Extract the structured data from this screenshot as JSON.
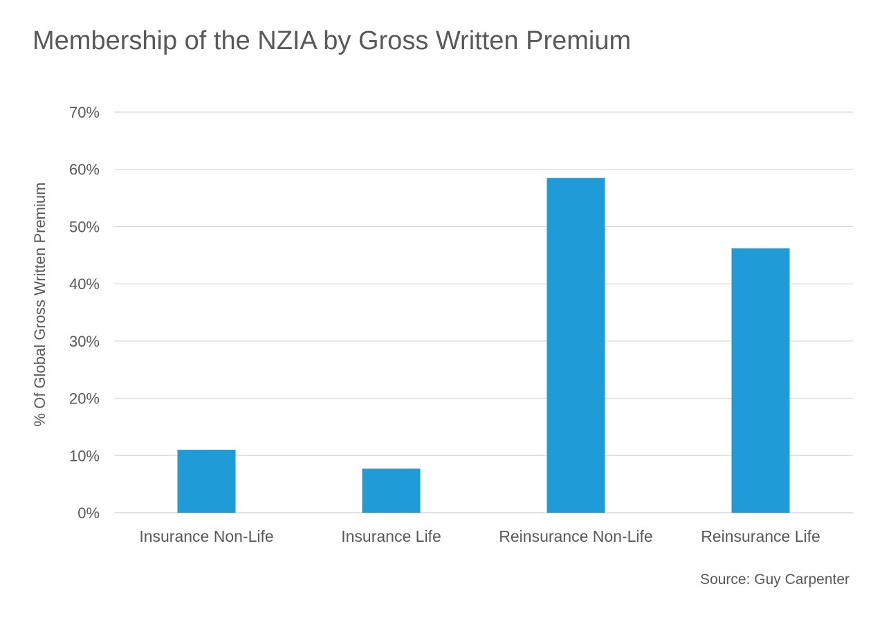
{
  "source": "Source: Guy Carpenter",
  "chart_data": {
    "type": "bar",
    "title": "Membership of the NZIA by Gross Written Premium",
    "xlabel": "",
    "ylabel": "% Of Global Gross Written Premium",
    "categories": [
      "Insurance Non-Life",
      "Insurance Life",
      "Reinsurance Non-Life",
      "Reinsurance Life"
    ],
    "values": [
      0.11,
      0.077,
      0.585,
      0.462
    ],
    "ylim": [
      0,
      0.7
    ],
    "yticks": [
      0,
      0.1,
      0.2,
      0.3,
      0.4,
      0.5,
      0.6,
      0.7
    ],
    "ytick_labels": [
      "0%",
      "10%",
      "20%",
      "30%",
      "40%",
      "50%",
      "60%",
      "70%"
    ],
    "grid": true,
    "legend": "none",
    "bar_color": "#1f9bd7"
  }
}
